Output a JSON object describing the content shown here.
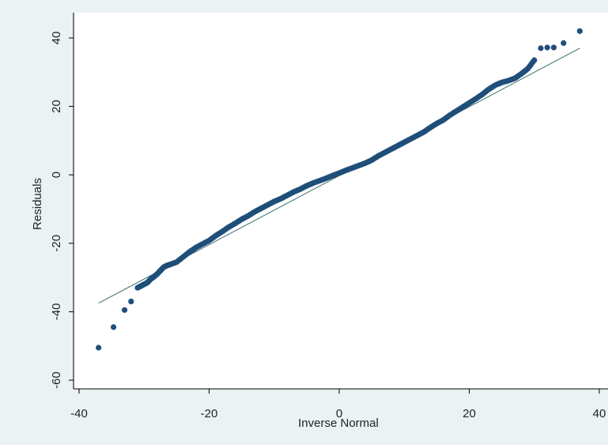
{
  "chart_data": {
    "type": "scatter",
    "title": "",
    "xlabel": "Inverse Normal",
    "ylabel": "Residuals",
    "xlim": [
      -40,
      40
    ],
    "ylim": [
      -60,
      40
    ],
    "xticks": [
      -40,
      -20,
      0,
      20,
      40
    ],
    "yticks": [
      -60,
      -40,
      -20,
      0,
      20,
      40
    ],
    "grid": false,
    "colors": {
      "points": "#1f4e79",
      "reference_line": "#3b6e6e",
      "background": "#eaf2f3",
      "plot_area": "#ffffff"
    },
    "reference_line": {
      "x": [
        -37,
        37
      ],
      "y": [
        -37.5,
        37
      ]
    },
    "points": {
      "x": [
        -37,
        -34.7,
        -33,
        -32,
        -31,
        -30.5,
        -30,
        -29.5,
        -29,
        -28.5,
        -28,
        -27.5,
        -27,
        -26.5,
        -26,
        -25,
        -24,
        -23,
        -22,
        -21,
        -20,
        -19,
        -18,
        -17,
        -16,
        -15,
        -14,
        -13,
        -12,
        -11,
        -10,
        -9,
        -8,
        -7,
        -6,
        -5,
        -4,
        -3,
        -2,
        -1,
        0,
        1,
        2,
        3,
        4,
        5,
        6,
        7,
        8,
        9,
        10,
        11,
        12,
        13,
        14,
        15,
        16,
        17,
        18,
        19,
        20,
        21,
        22,
        23,
        24,
        25,
        26,
        27,
        28,
        29,
        30,
        31,
        32,
        33,
        34.5,
        37
      ],
      "y": [
        -50.5,
        -44.5,
        -39.5,
        -37,
        -33,
        -32.5,
        -32,
        -31.5,
        -30.5,
        -29.8,
        -29,
        -28,
        -27,
        -26.5,
        -26.2,
        -25.5,
        -24,
        -22.5,
        -21.2,
        -20.2,
        -19.2,
        -17.8,
        -16.6,
        -15.3,
        -14.2,
        -13,
        -12,
        -10.8,
        -9.8,
        -8.8,
        -7.8,
        -7,
        -6,
        -5,
        -4.2,
        -3.2,
        -2.4,
        -1.7,
        -1,
        -0.2,
        0.5,
        1.3,
        2,
        2.7,
        3.4,
        4.3,
        5.5,
        6.5,
        7.5,
        8.5,
        9.5,
        10.5,
        11.5,
        12.5,
        13.8,
        15,
        16,
        17.4,
        18.6,
        19.8,
        21,
        22.2,
        23.5,
        25,
        26.2,
        27,
        27.5,
        28.2,
        29.5,
        31,
        33.5,
        37,
        37.2,
        37.2,
        38.5,
        42
      ]
    }
  }
}
